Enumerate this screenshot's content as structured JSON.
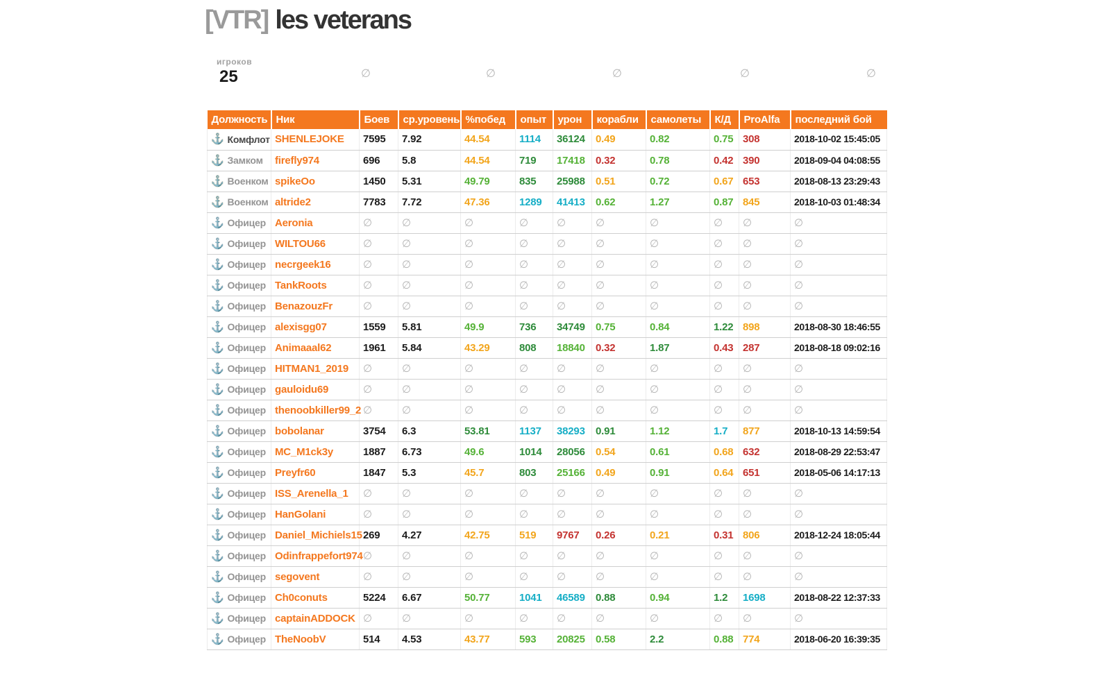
{
  "title": {
    "tag": "[VTR]",
    "name": "les veterans"
  },
  "summary": {
    "players_label": "игроков",
    "players_count": "25",
    "empty_icon": "∅",
    "empty_slots": 5
  },
  "colors": {
    "accent_orange": "#f4781f",
    "value_black": "#1c1c1c",
    "value_red": "#c43330",
    "value_amber": "#f2a51c",
    "value_green": "#55b237",
    "value_darkgreen": "#2e8b3a",
    "value_teal": "#16aec6",
    "empty_gray": "#b5b5b5"
  },
  "table": {
    "empty_icon": "∅",
    "columns": [
      {
        "key": "rank",
        "label": "Должность"
      },
      {
        "key": "nick",
        "label": "Ник"
      },
      {
        "key": "battles",
        "label": "Боев"
      },
      {
        "key": "avg_level",
        "label": "ср.уровень"
      },
      {
        "key": "win_pct",
        "label": "%побед"
      },
      {
        "key": "exp",
        "label": "опыт"
      },
      {
        "key": "dmg",
        "label": "урон"
      },
      {
        "key": "ships",
        "label": "корабли"
      },
      {
        "key": "planes",
        "label": "самолеты"
      },
      {
        "key": "kd",
        "label": "К/Д"
      },
      {
        "key": "proalfa",
        "label": "ProAlfa"
      },
      {
        "key": "last_battle",
        "label": "последний бой"
      }
    ],
    "rows": [
      {
        "rank": "Комфлот",
        "tier": "command",
        "label_style": "dark",
        "nick": "SHENLEJOKE",
        "stats": [
          [
            "7595",
            "k"
          ],
          [
            "7.92",
            "k"
          ],
          [
            "44.54",
            "o"
          ],
          [
            "1114",
            "t"
          ],
          [
            "36124",
            "G"
          ],
          [
            "0.49",
            "o"
          ],
          [
            "0.82",
            "g"
          ],
          [
            "0.75",
            "g"
          ],
          [
            "308",
            "r"
          ],
          [
            "2018-10-02 15:45:05",
            "k"
          ]
        ]
      },
      {
        "rank": "Замком",
        "tier": "command",
        "label_style": "gray",
        "nick": "firefly974",
        "stats": [
          [
            "696",
            "k"
          ],
          [
            "5.8",
            "k"
          ],
          [
            "44.54",
            "o"
          ],
          [
            "719",
            "G"
          ],
          [
            "17418",
            "g"
          ],
          [
            "0.32",
            "r"
          ],
          [
            "0.78",
            "g"
          ],
          [
            "0.42",
            "r"
          ],
          [
            "390",
            "r"
          ],
          [
            "2018-09-04 04:08:55",
            "k"
          ]
        ]
      },
      {
        "rank": "Военком",
        "tier": "command",
        "label_style": "gray",
        "nick": "spikeOo",
        "stats": [
          [
            "1450",
            "k"
          ],
          [
            "5.31",
            "k"
          ],
          [
            "49.79",
            "g"
          ],
          [
            "835",
            "G"
          ],
          [
            "25988",
            "G"
          ],
          [
            "0.51",
            "o"
          ],
          [
            "0.72",
            "g"
          ],
          [
            "0.67",
            "o"
          ],
          [
            "653",
            "r"
          ],
          [
            "2018-08-13 23:29:43",
            "k"
          ]
        ]
      },
      {
        "rank": "Военком",
        "tier": "command",
        "label_style": "gray",
        "nick": "altride2",
        "stats": [
          [
            "7783",
            "k"
          ],
          [
            "7.72",
            "k"
          ],
          [
            "47.36",
            "o"
          ],
          [
            "1289",
            "t"
          ],
          [
            "41413",
            "t"
          ],
          [
            "0.62",
            "g"
          ],
          [
            "1.27",
            "g"
          ],
          [
            "0.87",
            "g"
          ],
          [
            "845",
            "o"
          ],
          [
            "2018-10-03 01:48:34",
            "k"
          ]
        ]
      },
      {
        "rank": "Офицер",
        "tier": "officer",
        "label_style": "gray",
        "nick": "Aeronia",
        "stats": null
      },
      {
        "rank": "Офицер",
        "tier": "officer",
        "label_style": "gray",
        "nick": "WILTOU66",
        "stats": null
      },
      {
        "rank": "Офицер",
        "tier": "officer",
        "label_style": "gray",
        "nick": "necrgeek16",
        "stats": null
      },
      {
        "rank": "Офицер",
        "tier": "officer",
        "label_style": "gray",
        "nick": "TankRoots",
        "stats": null
      },
      {
        "rank": "Офицер",
        "tier": "officer",
        "label_style": "gray",
        "nick": "BenazouzFr",
        "stats": null
      },
      {
        "rank": "Офицер",
        "tier": "officer",
        "label_style": "gray",
        "nick": "alexisgg07",
        "stats": [
          [
            "1559",
            "k"
          ],
          [
            "5.81",
            "k"
          ],
          [
            "49.9",
            "g"
          ],
          [
            "736",
            "G"
          ],
          [
            "34749",
            "G"
          ],
          [
            "0.75",
            "g"
          ],
          [
            "0.84",
            "g"
          ],
          [
            "1.22",
            "G"
          ],
          [
            "898",
            "o"
          ],
          [
            "2018-08-30 18:46:55",
            "k"
          ]
        ]
      },
      {
        "rank": "Офицер",
        "tier": "officer",
        "label_style": "gray",
        "nick": "Animaaal62",
        "stats": [
          [
            "1961",
            "k"
          ],
          [
            "5.84",
            "k"
          ],
          [
            "43.29",
            "o"
          ],
          [
            "808",
            "G"
          ],
          [
            "18840",
            "g"
          ],
          [
            "0.32",
            "r"
          ],
          [
            "1.87",
            "G"
          ],
          [
            "0.43",
            "r"
          ],
          [
            "287",
            "r"
          ],
          [
            "2018-08-18 09:02:16",
            "k"
          ]
        ]
      },
      {
        "rank": "Офицер",
        "tier": "officer",
        "label_style": "gray",
        "nick": "HITMAN1_2019",
        "stats": null
      },
      {
        "rank": "Офицер",
        "tier": "officer",
        "label_style": "gray",
        "nick": "gauloidu69",
        "stats": null
      },
      {
        "rank": "Офицер",
        "tier": "officer",
        "label_style": "gray",
        "nick": "thenoobkiller99_2",
        "stats": null
      },
      {
        "rank": "Офицер",
        "tier": "officer",
        "label_style": "gray",
        "nick": "bobolanar",
        "stats": [
          [
            "3754",
            "k"
          ],
          [
            "6.3",
            "k"
          ],
          [
            "53.81",
            "G"
          ],
          [
            "1137",
            "t"
          ],
          [
            "38293",
            "t"
          ],
          [
            "0.91",
            "G"
          ],
          [
            "1.12",
            "g"
          ],
          [
            "1.7",
            "t"
          ],
          [
            "877",
            "o"
          ],
          [
            "2018-10-13 14:59:54",
            "k"
          ]
        ]
      },
      {
        "rank": "Офицер",
        "tier": "officer",
        "label_style": "gray",
        "nick": "MC_M1ck3y",
        "stats": [
          [
            "1887",
            "k"
          ],
          [
            "6.73",
            "k"
          ],
          [
            "49.6",
            "g"
          ],
          [
            "1014",
            "G"
          ],
          [
            "28056",
            "G"
          ],
          [
            "0.54",
            "o"
          ],
          [
            "0.61",
            "g"
          ],
          [
            "0.68",
            "o"
          ],
          [
            "632",
            "r"
          ],
          [
            "2018-08-29 22:53:47",
            "k"
          ]
        ]
      },
      {
        "rank": "Офицер",
        "tier": "officer",
        "label_style": "gray",
        "nick": "Preyfr60",
        "stats": [
          [
            "1847",
            "k"
          ],
          [
            "5.3",
            "k"
          ],
          [
            "45.7",
            "o"
          ],
          [
            "803",
            "G"
          ],
          [
            "25166",
            "g"
          ],
          [
            "0.49",
            "o"
          ],
          [
            "0.91",
            "g"
          ],
          [
            "0.64",
            "o"
          ],
          [
            "651",
            "r"
          ],
          [
            "2018-05-06 14:17:13",
            "k"
          ]
        ]
      },
      {
        "rank": "Офицер",
        "tier": "officer",
        "label_style": "gray",
        "nick": "ISS_Arenella_1",
        "stats": null
      },
      {
        "rank": "Офицер",
        "tier": "officer",
        "label_style": "gray",
        "nick": "HanGolani",
        "stats": null
      },
      {
        "rank": "Офицер",
        "tier": "officer",
        "label_style": "gray",
        "nick": "Daniel_Michiels15",
        "stats": [
          [
            "269",
            "k"
          ],
          [
            "4.27",
            "k"
          ],
          [
            "42.75",
            "o"
          ],
          [
            "519",
            "o"
          ],
          [
            "9767",
            "r"
          ],
          [
            "0.26",
            "r"
          ],
          [
            "0.21",
            "o"
          ],
          [
            "0.31",
            "r"
          ],
          [
            "806",
            "o"
          ],
          [
            "2018-12-24 18:05:44",
            "k"
          ]
        ]
      },
      {
        "rank": "Офицер",
        "tier": "officer",
        "label_style": "gray",
        "nick": "Odinfrappefort974",
        "stats": null
      },
      {
        "rank": "Офицер",
        "tier": "officer",
        "label_style": "gray",
        "nick": "segovent",
        "stats": null
      },
      {
        "rank": "Офицер",
        "tier": "officer",
        "label_style": "gray",
        "nick": "Ch0conuts",
        "stats": [
          [
            "5224",
            "k"
          ],
          [
            "6.67",
            "k"
          ],
          [
            "50.77",
            "g"
          ],
          [
            "1041",
            "t"
          ],
          [
            "46589",
            "t"
          ],
          [
            "0.88",
            "G"
          ],
          [
            "0.94",
            "g"
          ],
          [
            "1.2",
            "G"
          ],
          [
            "1698",
            "t"
          ],
          [
            "2018-08-22 12:37:33",
            "k"
          ]
        ]
      },
      {
        "rank": "Офицер",
        "tier": "officer",
        "label_style": "gray",
        "nick": "captainADDOCK",
        "stats": null
      },
      {
        "rank": "Офицер",
        "tier": "officer",
        "label_style": "gray",
        "nick": "TheNoobV",
        "stats": [
          [
            "514",
            "k"
          ],
          [
            "4.53",
            "k"
          ],
          [
            "43.77",
            "o"
          ],
          [
            "593",
            "g"
          ],
          [
            "20825",
            "g"
          ],
          [
            "0.58",
            "g"
          ],
          [
            "2.2",
            "G"
          ],
          [
            "0.88",
            "g"
          ],
          [
            "774",
            "o"
          ],
          [
            "2018-06-20 16:39:35",
            "k"
          ]
        ]
      }
    ]
  }
}
